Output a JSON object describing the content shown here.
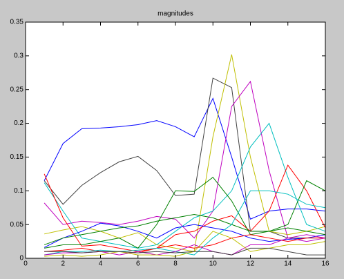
{
  "chart_data": {
    "type": "line",
    "title": "magnitudes",
    "x": [
      1,
      2,
      3,
      4,
      5,
      6,
      7,
      8,
      9,
      10,
      11,
      12,
      13,
      14,
      15,
      16
    ],
    "xlim": [
      0,
      16
    ],
    "xticks": [
      0,
      2,
      4,
      6,
      8,
      10,
      12,
      14,
      16
    ],
    "ylim": [
      0,
      0.35
    ],
    "yticks": [
      0,
      0.05,
      0.1,
      0.15,
      0.2,
      0.25,
      0.3,
      0.35
    ],
    "grid": false,
    "series": [
      {
        "color": "#0000ff",
        "values": [
          0.115,
          0.17,
          0.192,
          0.193,
          0.195,
          0.198,
          0.204,
          0.195,
          0.18,
          0.237,
          0.15,
          0.058,
          0.07,
          0.073,
          0.073,
          0.07
        ]
      },
      {
        "color": "#404040",
        "values": [
          0.115,
          0.08,
          0.108,
          0.127,
          0.143,
          0.151,
          0.13,
          0.093,
          0.095,
          0.267,
          0.253,
          0.04,
          0.04,
          0.03,
          0.03,
          0.03
        ]
      },
      {
        "color": "#bfbf00",
        "values": [
          0.036,
          0.042,
          0.047,
          0.04,
          0.03,
          0.038,
          0.02,
          0.015,
          0.01,
          0.18,
          0.302,
          0.15,
          0.04,
          0.035,
          0.04,
          0.047
        ]
      },
      {
        "color": "#bf00bf",
        "values": [
          0.082,
          0.05,
          0.055,
          0.053,
          0.05,
          0.055,
          0.062,
          0.058,
          0.03,
          0.07,
          0.225,
          0.262,
          0.13,
          0.03,
          0.025,
          0.03
        ]
      },
      {
        "color": "#00bfbf",
        "values": [
          0.112,
          0.07,
          0.03,
          0.025,
          0.02,
          0.015,
          0.02,
          0.04,
          0.06,
          0.07,
          0.1,
          0.165,
          0.2,
          0.12,
          0.05,
          0.04
        ]
      },
      {
        "color": "#ff0000",
        "values": [
          0.125,
          0.06,
          0.018,
          0.02,
          0.015,
          0.01,
          0.015,
          0.035,
          0.04,
          0.055,
          0.063,
          0.04,
          0.07,
          0.138,
          0.1,
          0.045
        ]
      },
      {
        "color": "#008000",
        "values": [
          0.015,
          0.02,
          0.02,
          0.025,
          0.03,
          0.015,
          0.05,
          0.1,
          0.099,
          0.12,
          0.085,
          0.035,
          0.04,
          0.05,
          0.115,
          0.1
        ]
      },
      {
        "color": "#0000ff",
        "values": [
          0.016,
          0.03,
          0.04,
          0.052,
          0.048,
          0.04,
          0.03,
          0.045,
          0.05,
          0.045,
          0.04,
          0.03,
          0.025,
          0.028,
          0.03,
          0.035
        ]
      },
      {
        "color": "#008000",
        "values": [
          0.02,
          0.03,
          0.035,
          0.04,
          0.045,
          0.048,
          0.055,
          0.06,
          0.065,
          0.06,
          0.05,
          0.04,
          0.04,
          0.045,
          0.04,
          0.035
        ]
      },
      {
        "color": "#ff0000",
        "values": [
          0.01,
          0.012,
          0.015,
          0.01,
          0.01,
          0.008,
          0.015,
          0.02,
          0.015,
          0.02,
          0.03,
          0.035,
          0.03,
          0.025,
          0.03,
          0.03
        ]
      },
      {
        "color": "#00bfbf",
        "values": [
          0.005,
          0.01,
          0.01,
          0.012,
          0.01,
          0.012,
          0.015,
          0.01,
          0.005,
          0.03,
          0.05,
          0.1,
          0.1,
          0.095,
          0.08,
          0.075
        ]
      },
      {
        "color": "#bf00bf",
        "values": [
          0.005,
          0.008,
          0.008,
          0.01,
          0.005,
          0.01,
          0.005,
          0.01,
          0.02,
          0.01,
          0.005,
          0.02,
          0.02,
          0.03,
          0.035,
          0.03
        ]
      },
      {
        "color": "#bfbf00",
        "values": [
          0.003,
          0.005,
          0.003,
          0.005,
          0.01,
          0.005,
          0.005,
          0.003,
          0.01,
          0.04,
          0.03,
          0.01,
          0.015,
          0.02,
          0.02,
          0.025
        ]
      },
      {
        "color": "#404040",
        "values": [
          0.01,
          0.01,
          0.008,
          0.01,
          0.01,
          0.008,
          0.01,
          0.008,
          0.01,
          0.01,
          0.005,
          0.015,
          0.015,
          0.01,
          0.005,
          0.005
        ]
      }
    ]
  }
}
